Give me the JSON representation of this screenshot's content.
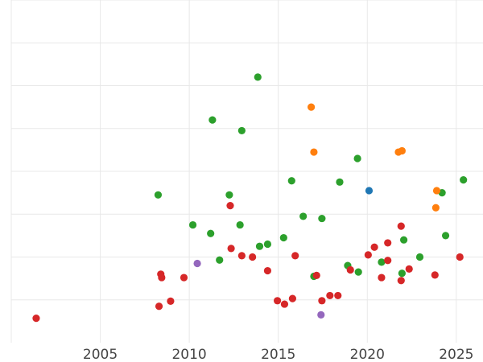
{
  "chart_data": {
    "type": "scatter",
    "title": "",
    "xlabel": "",
    "ylabel": "",
    "xlim": [
      2000,
      2026.5
    ],
    "ylim": [
      0,
      8
    ],
    "x_ticks": [
      2005,
      2010,
      2015,
      2020,
      2025
    ],
    "y_gridlines": [
      1,
      2,
      3,
      4,
      5,
      6,
      7,
      8
    ],
    "grid": true,
    "legend": "none",
    "series": [
      {
        "color": "#2ca02c",
        "points": [
          [
            2013.85,
            6.2
          ],
          [
            2011.3,
            5.2
          ],
          [
            2012.95,
            4.95
          ],
          [
            2019.45,
            4.3
          ],
          [
            2025.4,
            3.8
          ],
          [
            2015.75,
            3.78
          ],
          [
            2018.45,
            3.75
          ],
          [
            2024.2,
            3.5
          ],
          [
            2008.25,
            3.45
          ],
          [
            2012.25,
            3.45
          ],
          [
            2016.4,
            2.95
          ],
          [
            2017.45,
            2.9
          ],
          [
            2010.2,
            2.75
          ],
          [
            2012.85,
            2.75
          ],
          [
            2011.2,
            2.55
          ],
          [
            2015.3,
            2.45
          ],
          [
            2024.4,
            2.5
          ],
          [
            2022.05,
            2.4
          ],
          [
            2014.4,
            2.3
          ],
          [
            2013.95,
            2.25
          ],
          [
            2022.95,
            2.0
          ],
          [
            2011.7,
            1.93
          ],
          [
            2020.8,
            1.88
          ],
          [
            2018.9,
            1.8
          ],
          [
            2019.5,
            1.65
          ],
          [
            2021.95,
            1.62
          ],
          [
            2017.0,
            1.55
          ]
        ]
      },
      {
        "color": "#ff7f0e",
        "points": [
          [
            2016.85,
            5.5
          ],
          [
            2017.0,
            4.45
          ],
          [
            2021.75,
            4.45
          ],
          [
            2021.95,
            4.48
          ],
          [
            2023.9,
            3.55
          ],
          [
            2023.85,
            3.15
          ]
        ]
      },
      {
        "color": "#1f77b4",
        "points": [
          [
            2020.1,
            3.55
          ]
        ]
      },
      {
        "color": "#9467bd",
        "points": [
          [
            2010.45,
            1.85
          ],
          [
            2017.4,
            0.65
          ]
        ]
      },
      {
        "color": "#d62728",
        "points": [
          [
            2001.4,
            0.57
          ],
          [
            2008.4,
            1.6
          ],
          [
            2008.45,
            1.52
          ],
          [
            2008.3,
            0.85
          ],
          [
            2008.95,
            0.97
          ],
          [
            2009.7,
            1.52
          ],
          [
            2012.3,
            3.2
          ],
          [
            2012.35,
            2.2
          ],
          [
            2012.95,
            2.03
          ],
          [
            2013.55,
            2.0
          ],
          [
            2014.4,
            1.68
          ],
          [
            2014.95,
            0.98
          ],
          [
            2015.35,
            0.9
          ],
          [
            2015.8,
            1.03
          ],
          [
            2015.95,
            2.03
          ],
          [
            2017.15,
            1.57
          ],
          [
            2017.45,
            0.98
          ],
          [
            2017.9,
            1.1
          ],
          [
            2018.35,
            1.1
          ],
          [
            2019.05,
            1.7
          ],
          [
            2020.05,
            2.05
          ],
          [
            2020.4,
            2.23
          ],
          [
            2020.8,
            1.52
          ],
          [
            2021.15,
            1.92
          ],
          [
            2021.15,
            2.33
          ],
          [
            2021.9,
            2.72
          ],
          [
            2021.9,
            1.45
          ],
          [
            2022.35,
            1.72
          ],
          [
            2023.8,
            1.58
          ],
          [
            2025.2,
            2.0
          ]
        ]
      }
    ]
  }
}
